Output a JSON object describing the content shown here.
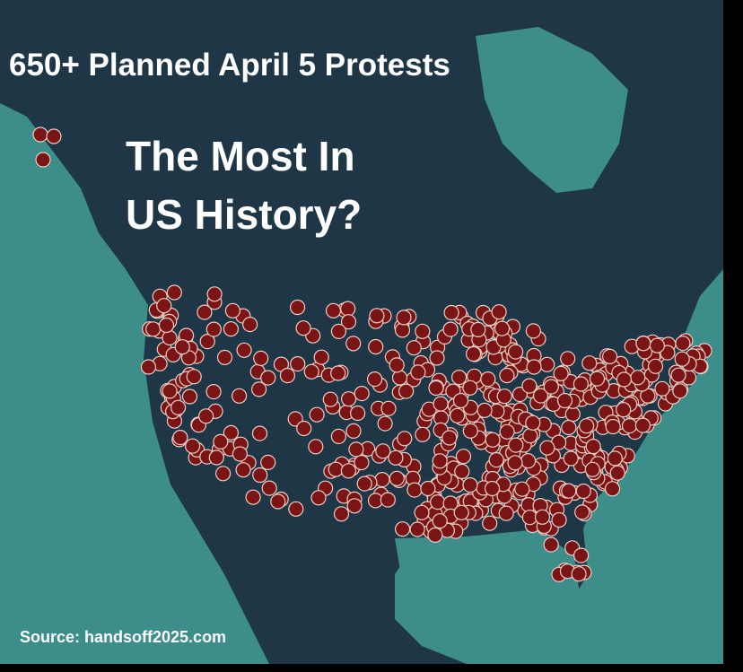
{
  "header": {
    "title": "650+ Planned April 5 Protests",
    "subtitle_lines": [
      "The Most In",
      "US History?"
    ]
  },
  "footer": {
    "source": "Source:  handsoff2025.com"
  }
}
